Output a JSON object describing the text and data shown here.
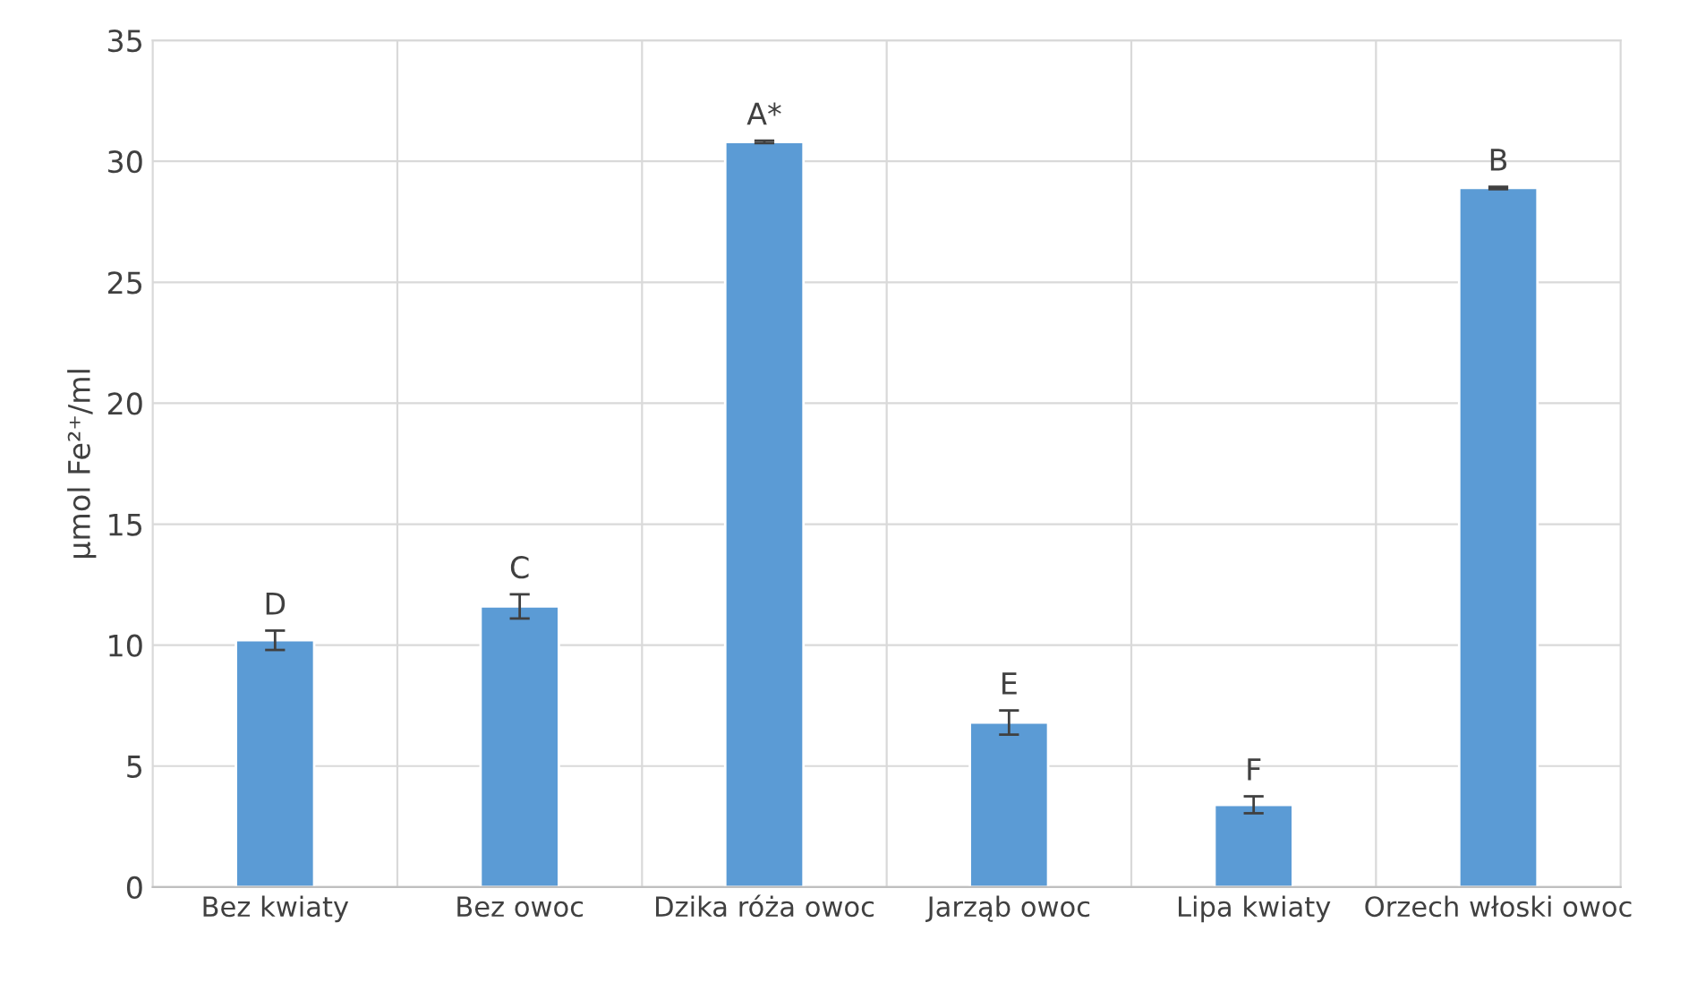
{
  "chart_data": {
    "type": "bar",
    "ylabel": "µmol Fe²⁺/ml",
    "categories": [
      "Bez kwiaty",
      "Bez owoc",
      "Dzika róża owoc",
      "Jarząb owoc",
      "Lipa kwiaty",
      "Orzech włoski owoc"
    ],
    "values": [
      10.2,
      11.6,
      30.8,
      6.8,
      3.4,
      28.9
    ],
    "errors": [
      0.4,
      0.5,
      0.05,
      0.5,
      0.35,
      0.05
    ],
    "color": "#5b9bd5",
    "ylim": [
      0,
      35
    ],
    "yticks": [
      0,
      5,
      10,
      15,
      20,
      25,
      30,
      35
    ],
    "grid": true,
    "annotations": [
      {
        "text": "D",
        "x": "Bez kwiaty",
        "y": 10.6
      },
      {
        "text": "C",
        "x": "Bez owoc",
        "y": 12.1
      },
      {
        "text": "A*",
        "x": "Dzika róża owoc",
        "y": 30.85
      },
      {
        "text": "E",
        "x": "Jarząb owoc",
        "y": 7.3
      },
      {
        "text": "F",
        "x": "Lipa kwiaty",
        "y": 3.75
      },
      {
        "text": "B",
        "x": "Orzech włoski owoc",
        "y": 28.95
      }
    ]
  }
}
